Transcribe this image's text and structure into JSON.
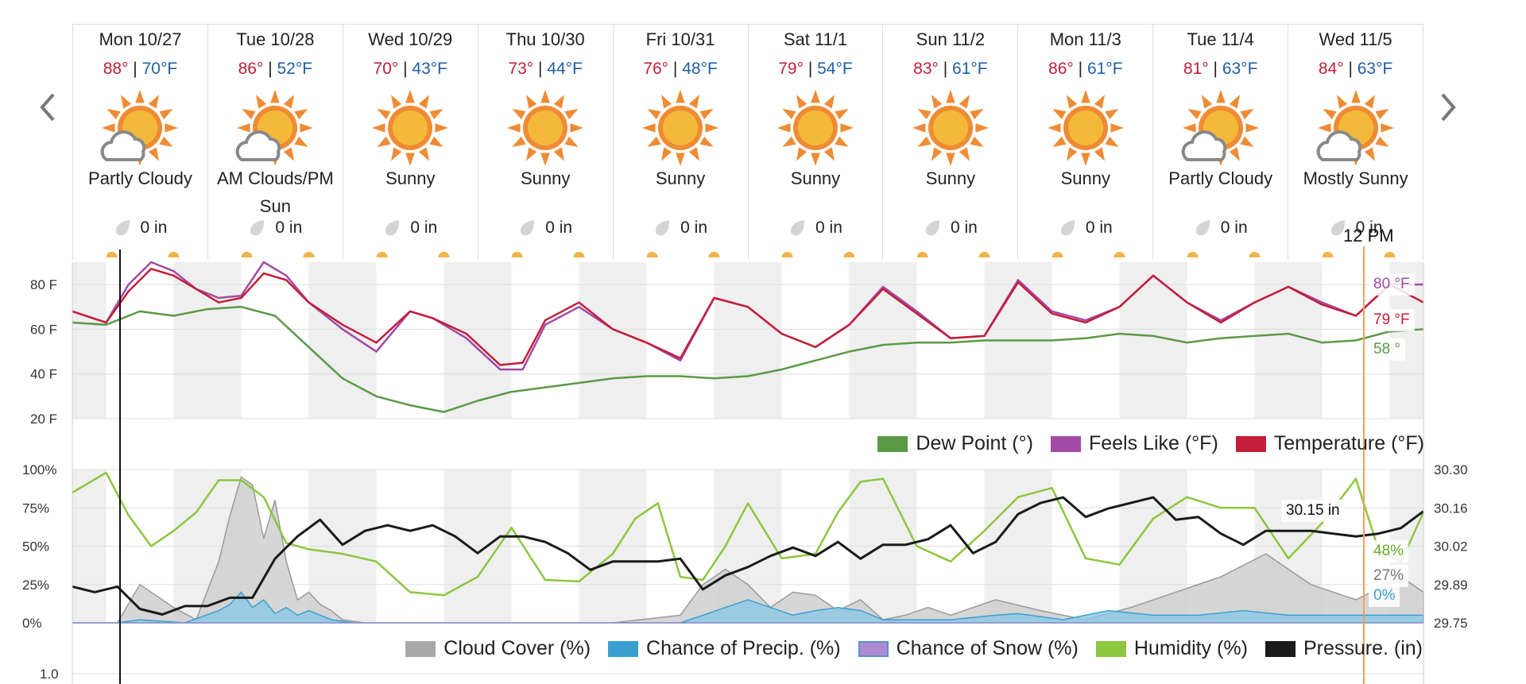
{
  "days": [
    {
      "label": "Mon 10/27",
      "hi": "88°",
      "lo": "70°F",
      "icon": "partly-cloudy-icon",
      "cond": "Partly Cloudy",
      "precip": "0 in"
    },
    {
      "label": "Tue 10/28",
      "hi": "86°",
      "lo": "52°F",
      "icon": "partly-cloudy-icon",
      "cond": "AM Clouds/PM Sun",
      "precip": "0 in"
    },
    {
      "label": "Wed 10/29",
      "hi": "70°",
      "lo": "43°F",
      "icon": "sunny-icon",
      "cond": "Sunny",
      "precip": "0 in"
    },
    {
      "label": "Thu 10/30",
      "hi": "73°",
      "lo": "44°F",
      "icon": "sunny-icon",
      "cond": "Sunny",
      "precip": "0 in"
    },
    {
      "label": "Fri 10/31",
      "hi": "76°",
      "lo": "48°F",
      "icon": "sunny-icon",
      "cond": "Sunny",
      "precip": "0 in"
    },
    {
      "label": "Sat 11/1",
      "hi": "79°",
      "lo": "54°F",
      "icon": "sunny-icon",
      "cond": "Sunny",
      "precip": "0 in"
    },
    {
      "label": "Sun 11/2",
      "hi": "83°",
      "lo": "61°F",
      "icon": "sunny-icon",
      "cond": "Sunny",
      "precip": "0 in"
    },
    {
      "label": "Mon 11/3",
      "hi": "86°",
      "lo": "61°F",
      "icon": "sunny-icon",
      "cond": "Sunny",
      "precip": "0 in"
    },
    {
      "label": "Tue 11/4",
      "hi": "81°",
      "lo": "63°F",
      "icon": "partly-cloudy-icon",
      "cond": "Partly Cloudy",
      "precip": "0 in"
    },
    {
      "label": "Wed 11/5",
      "hi": "84°",
      "lo": "63°F",
      "icon": "partly-cloudy-icon",
      "cond": "Mostly Sunny",
      "precip": "0 in"
    }
  ],
  "cursor_label": "12 PM",
  "nav": {
    "prev_icon": "chevron-left-icon",
    "next_icon": "chevron-right-icon"
  },
  "colors": {
    "temperature": "#c41e3a",
    "feels_like": "#a24ba6",
    "dew_point": "#5a9a45",
    "cloud": "#a8a8a8",
    "precip": "#3aa0d0",
    "snow": "#b08ad0",
    "humidity": "#8dc63f",
    "pressure": "#1a1a1a",
    "cursor": "#f0a060"
  },
  "chart_data": [
    {
      "type": "line",
      "title": "",
      "ylim": [
        20,
        90
      ],
      "yticks": [
        "80 F",
        "60 F",
        "40 F",
        "20 F"
      ],
      "x_unit": "hours from Mon 10/27 00:00",
      "xlim": [
        0,
        240
      ],
      "series": [
        {
          "name": "Dew Point (°)",
          "key": "dew",
          "x": [
            0,
            6,
            12,
            18,
            24,
            30,
            36,
            42,
            48,
            54,
            60,
            66,
            72,
            78,
            84,
            90,
            96,
            102,
            108,
            114,
            120,
            126,
            132,
            138,
            144,
            150,
            156,
            162,
            168,
            174,
            180,
            186,
            192,
            198,
            204,
            210,
            216,
            222,
            228,
            234,
            240
          ],
          "values": [
            63,
            62,
            68,
            66,
            69,
            70,
            66,
            52,
            38,
            30,
            26,
            23,
            28,
            32,
            34,
            36,
            38,
            39,
            39,
            38,
            39,
            42,
            46,
            50,
            53,
            54,
            54,
            55,
            55,
            55,
            56,
            58,
            57,
            54,
            56,
            57,
            58,
            54,
            55,
            59,
            60
          ]
        },
        {
          "name": "Feels Like (°F)",
          "key": "feels",
          "x": [
            0,
            6,
            10,
            14,
            18,
            22,
            26,
            30,
            34,
            38,
            42,
            48,
            54,
            60,
            64,
            70,
            76,
            80,
            84,
            90,
            96,
            102,
            108,
            114,
            120,
            126,
            132,
            138,
            144,
            150,
            156,
            162,
            168,
            174,
            180,
            186,
            192,
            198,
            204,
            210,
            216,
            222,
            228,
            234,
            240
          ],
          "values": [
            68,
            63,
            80,
            90,
            86,
            78,
            74,
            75,
            90,
            84,
            72,
            60,
            50,
            68,
            65,
            56,
            42,
            42,
            62,
            70,
            60,
            54,
            46,
            74,
            70,
            58,
            52,
            62,
            79,
            68,
            56,
            57,
            82,
            68,
            64,
            70,
            84,
            72,
            64,
            72,
            79,
            72,
            66,
            80,
            80
          ]
        },
        {
          "name": "Temperature (°F)",
          "key": "temp",
          "x": [
            0,
            6,
            10,
            14,
            18,
            22,
            26,
            30,
            34,
            38,
            42,
            48,
            54,
            60,
            64,
            70,
            76,
            80,
            84,
            90,
            96,
            102,
            108,
            114,
            120,
            126,
            132,
            138,
            144,
            150,
            156,
            162,
            168,
            174,
            180,
            186,
            192,
            198,
            204,
            210,
            216,
            222,
            228,
            234,
            240
          ],
          "values": [
            68,
            63,
            77,
            87,
            84,
            78,
            72,
            74,
            85,
            82,
            72,
            62,
            54,
            68,
            65,
            58,
            44,
            45,
            64,
            72,
            60,
            54,
            47,
            74,
            70,
            58,
            52,
            62,
            78,
            67,
            56,
            57,
            81,
            67,
            63,
            70,
            84,
            72,
            63,
            72,
            79,
            71,
            66,
            80,
            72
          ]
        }
      ],
      "flags": [
        {
          "key": "feels",
          "text": "80 °F"
        },
        {
          "key": "temp",
          "text": "79 °F"
        },
        {
          "key": "dew",
          "text": "58 °"
        }
      ],
      "legend": "bottom-right"
    },
    {
      "type": "area",
      "title": "",
      "ylim": [
        0,
        100
      ],
      "yticks_left": [
        "100%",
        "75%",
        "50%",
        "25%",
        "0%"
      ],
      "yticks_right": [
        "30.30",
        "30.16",
        "30.02",
        "29.89",
        "29.75"
      ],
      "pressure_lim": [
        29.75,
        30.3
      ],
      "x_unit": "hours from Mon 10/27 00:00",
      "xlim": [
        0,
        240
      ],
      "series": [
        {
          "name": "Cloud Cover (%)",
          "key": "cloud",
          "x": [
            0,
            8,
            12,
            18,
            22,
            26,
            28,
            30,
            32,
            34,
            36,
            38,
            40,
            42,
            44,
            46,
            48,
            52,
            56,
            60,
            70,
            84,
            96,
            108,
            112,
            116,
            120,
            124,
            128,
            132,
            136,
            140,
            144,
            148,
            152,
            156,
            164,
            172,
            180,
            188,
            196,
            204,
            212,
            220,
            228,
            236,
            240
          ],
          "values": [
            0,
            0,
            25,
            10,
            2,
            40,
            70,
            95,
            90,
            55,
            80,
            40,
            15,
            20,
            12,
            8,
            2,
            0,
            0,
            0,
            0,
            0,
            0,
            5,
            25,
            35,
            25,
            10,
            20,
            18,
            8,
            15,
            2,
            5,
            10,
            5,
            15,
            8,
            2,
            10,
            20,
            30,
            45,
            25,
            15,
            30,
            20
          ]
        },
        {
          "name": "Chance of Precip. (%)",
          "key": "precip",
          "x": [
            0,
            8,
            12,
            20,
            26,
            28,
            30,
            32,
            34,
            36,
            38,
            40,
            42,
            46,
            50,
            100,
            108,
            112,
            116,
            120,
            124,
            128,
            132,
            136,
            140,
            144,
            156,
            164,
            168,
            176,
            184,
            192,
            200,
            208,
            216,
            224,
            232,
            240
          ],
          "values": [
            0,
            0,
            2,
            0,
            8,
            12,
            20,
            10,
            15,
            6,
            10,
            5,
            8,
            2,
            0,
            0,
            0,
            5,
            10,
            15,
            10,
            5,
            8,
            10,
            8,
            2,
            2,
            5,
            6,
            2,
            8,
            5,
            5,
            8,
            5,
            5,
            5,
            5
          ]
        },
        {
          "name": "Chance of Snow (%)",
          "key": "snow",
          "x": [
            0,
            240
          ],
          "values": [
            0,
            0
          ]
        },
        {
          "name": "Humidity (%)",
          "key": "humidity",
          "x": [
            0,
            6,
            10,
            14,
            18,
            22,
            26,
            30,
            34,
            38,
            42,
            48,
            54,
            60,
            66,
            72,
            78,
            84,
            90,
            96,
            100,
            104,
            108,
            112,
            116,
            120,
            126,
            132,
            136,
            140,
            144,
            150,
            156,
            162,
            168,
            174,
            180,
            186,
            192,
            198,
            204,
            210,
            216,
            222,
            228,
            232,
            236,
            240
          ],
          "values": [
            85,
            98,
            70,
            50,
            60,
            72,
            93,
            93,
            82,
            52,
            48,
            45,
            40,
            20,
            18,
            30,
            62,
            28,
            27,
            45,
            68,
            78,
            30,
            28,
            50,
            78,
            42,
            45,
            72,
            92,
            94,
            50,
            40,
            60,
            82,
            88,
            42,
            38,
            68,
            82,
            75,
            75,
            42,
            65,
            94,
            48,
            40,
            72
          ]
        },
        {
          "name": "Pressure. (in)",
          "key": "pressure",
          "x": [
            0,
            4,
            8,
            12,
            16,
            20,
            24,
            28,
            32,
            36,
            40,
            44,
            48,
            52,
            56,
            60,
            64,
            68,
            72,
            76,
            80,
            84,
            88,
            92,
            96,
            100,
            104,
            108,
            112,
            116,
            120,
            124,
            128,
            132,
            136,
            140,
            144,
            148,
            152,
            156,
            160,
            164,
            168,
            172,
            176,
            180,
            184,
            188,
            192,
            196,
            200,
            204,
            208,
            212,
            216,
            220,
            224,
            228,
            232,
            236,
            240
          ],
          "values": [
            29.88,
            29.86,
            29.88,
            29.8,
            29.78,
            29.81,
            29.81,
            29.84,
            29.84,
            29.98,
            30.06,
            30.12,
            30.03,
            30.08,
            30.1,
            30.08,
            30.1,
            30.06,
            30.0,
            30.06,
            30.06,
            30.04,
            30.0,
            29.94,
            29.97,
            29.97,
            29.97,
            29.98,
            29.87,
            29.92,
            29.95,
            29.99,
            30.02,
            29.99,
            30.04,
            29.98,
            30.03,
            30.03,
            30.05,
            30.1,
            30.0,
            30.04,
            30.14,
            30.18,
            30.2,
            30.13,
            30.16,
            30.18,
            30.2,
            30.12,
            30.13,
            30.07,
            30.03,
            30.08,
            30.08,
            30.08,
            30.07,
            30.06,
            30.07,
            30.09,
            30.15
          ]
        }
      ],
      "flags": [
        {
          "key": "pressure",
          "text": "30.15 in"
        },
        {
          "key": "humidity",
          "text": "48%"
        },
        {
          "key": "cloud",
          "text": "27%"
        },
        {
          "key": "precip",
          "text": "0%"
        }
      ],
      "legend": "bottom-right"
    },
    {
      "type": "line",
      "title": "",
      "yticks": [
        "1.0"
      ]
    }
  ]
}
